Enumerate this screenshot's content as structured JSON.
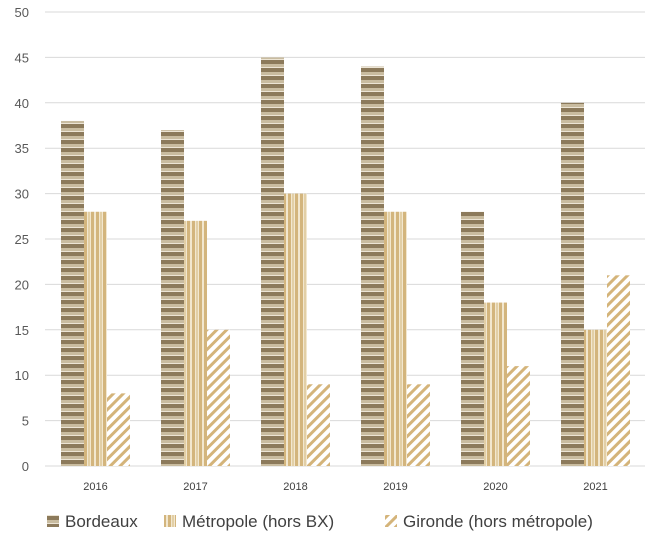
{
  "chart_data": {
    "type": "bar",
    "categories": [
      "2016",
      "2017",
      "2018",
      "2019",
      "2020",
      "2021"
    ],
    "series": [
      {
        "name": "Bordeaux",
        "values": [
          38,
          37,
          45,
          44,
          28,
          40
        ]
      },
      {
        "name": "Métropole (hors BX)",
        "values": [
          28,
          27,
          30,
          28,
          18,
          15
        ]
      },
      {
        "name": "Gironde (hors métropole)",
        "values": [
          8,
          15,
          9,
          9,
          11,
          21
        ]
      }
    ],
    "ylim": [
      0,
      50
    ],
    "yticks": [
      0,
      5,
      10,
      15,
      20,
      25,
      30,
      35,
      40,
      45,
      50
    ],
    "grid": true,
    "legend_position": "bottom",
    "colors": {
      "bordeaux": "#8c7a5b",
      "metropole": "#d8bf8d",
      "gironde": "#d4b47a",
      "grid": "#d9d9d9"
    }
  }
}
